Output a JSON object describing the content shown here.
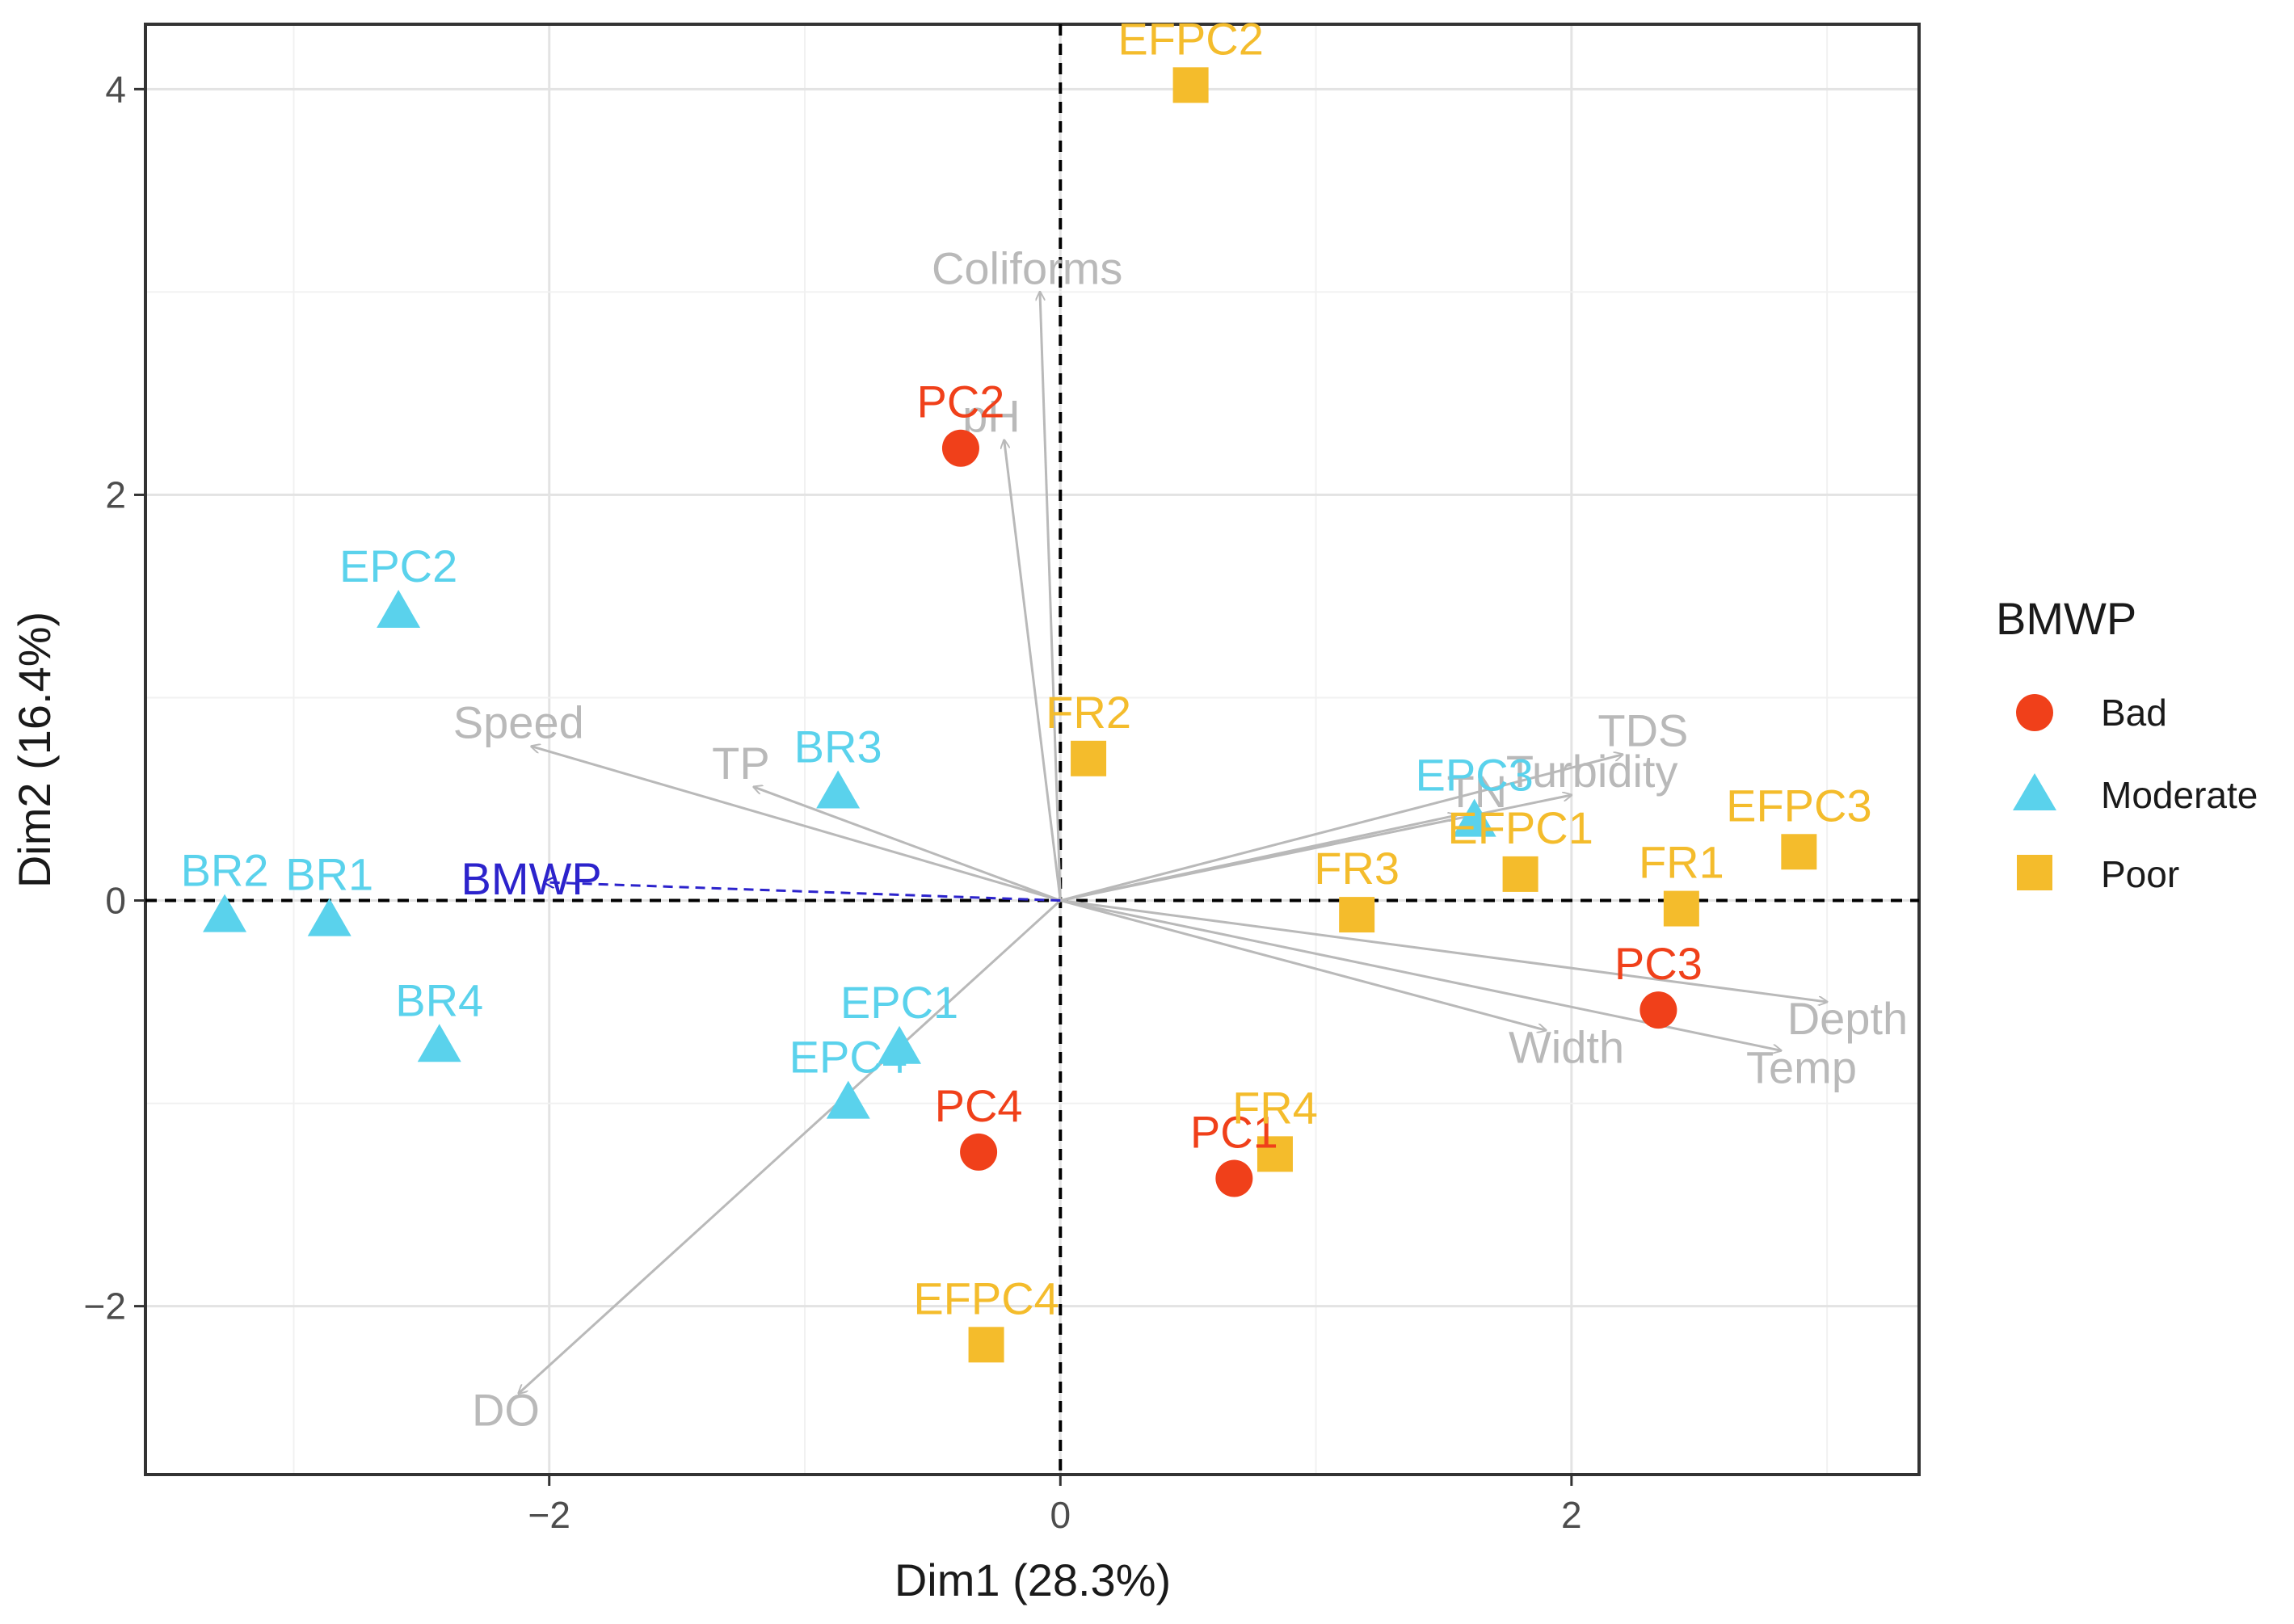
{
  "chart_data": {
    "type": "scatter",
    "subtype": "pca-biplot",
    "xlabel": "Dim1 (28.3%)",
    "ylabel": "Dim2 (16.4%)",
    "xlim": [
      -3.58,
      3.36
    ],
    "ylim": [
      -2.83,
      4.32
    ],
    "x_ticks": [
      -2,
      0,
      2
    ],
    "x_tick_labels": [
      "−2",
      "0",
      "2"
    ],
    "y_ticks": [
      -2,
      0,
      2,
      4
    ],
    "y_tick_labels": [
      "−2",
      "0",
      "2",
      "4"
    ],
    "grid": true,
    "legend": {
      "title": "BMWP",
      "position": "right",
      "entries": [
        {
          "label": "Bad",
          "shape": "circle",
          "color": "#f0401a"
        },
        {
          "label": "Moderate",
          "shape": "triangle",
          "color": "#5ad2ec"
        },
        {
          "label": "Poor",
          "shape": "square",
          "color": "#f4bc2c"
        }
      ]
    },
    "colors": {
      "Bad": "#f0401a",
      "Moderate": "#5ad2ec",
      "Poor": "#f4bc2c",
      "variables": "#b9b9b9",
      "supplementary": "#2c23cc"
    },
    "points": [
      {
        "label": "EFPC2",
        "x": 0.51,
        "y": 4.02,
        "group": "Poor"
      },
      {
        "label": "PC2",
        "x": -0.39,
        "y": 2.23,
        "group": "Bad"
      },
      {
        "label": "EPC2",
        "x": -2.59,
        "y": 1.42,
        "group": "Moderate"
      },
      {
        "label": "FR2",
        "x": 0.11,
        "y": 0.7,
        "group": "Poor"
      },
      {
        "label": "BR3",
        "x": -0.87,
        "y": 0.53,
        "group": "Moderate"
      },
      {
        "label": "EPC3",
        "x": 1.62,
        "y": 0.39,
        "group": "Moderate"
      },
      {
        "label": "EFPC3",
        "x": 2.89,
        "y": 0.24,
        "group": "Poor"
      },
      {
        "label": "EFPC1",
        "x": 1.8,
        "y": 0.13,
        "group": "Poor"
      },
      {
        "label": "FR1",
        "x": 2.43,
        "y": -0.04,
        "group": "Poor"
      },
      {
        "label": "FR3",
        "x": 1.16,
        "y": -0.07,
        "group": "Poor"
      },
      {
        "label": "BR2",
        "x": -3.27,
        "y": -0.08,
        "group": "Moderate"
      },
      {
        "label": "BR1",
        "x": -2.86,
        "y": -0.1,
        "group": "Moderate"
      },
      {
        "label": "PC3",
        "x": 2.34,
        "y": -0.54,
        "group": "Bad"
      },
      {
        "label": "BR4",
        "x": -2.43,
        "y": -0.72,
        "group": "Moderate"
      },
      {
        "label": "EPC1",
        "x": -0.63,
        "y": -0.73,
        "group": "Moderate"
      },
      {
        "label": "EPC4",
        "x": -0.83,
        "y": -1.0,
        "group": "Moderate"
      },
      {
        "label": "PC4",
        "x": -0.32,
        "y": -1.24,
        "group": "Bad"
      },
      {
        "label": "PC1",
        "x": 0.68,
        "y": -1.37,
        "group": "Bad"
      },
      {
        "label": "FR4",
        "x": 0.84,
        "y": -1.25,
        "group": "Poor"
      },
      {
        "label": "EFPC4",
        "x": -0.29,
        "y": -2.19,
        "group": "Poor"
      }
    ],
    "variables": [
      {
        "label": "Coliforms",
        "x": -0.08,
        "y": 3.0
      },
      {
        "label": "pH",
        "x": -0.22,
        "y": 2.27
      },
      {
        "label": "Speed",
        "x": -2.07,
        "y": 0.76
      },
      {
        "label": "TP",
        "x": -1.2,
        "y": 0.56
      },
      {
        "label": "TDS",
        "x": 2.2,
        "y": 0.72
      },
      {
        "label": "Turbidity",
        "x": 2.0,
        "y": 0.52
      },
      {
        "label": "TN",
        "x": 1.55,
        "y": 0.42
      },
      {
        "label": "Width",
        "x": 1.9,
        "y": -0.64
      },
      {
        "label": "Temp",
        "x": 2.82,
        "y": -0.74
      },
      {
        "label": "Depth",
        "x": 3.0,
        "y": -0.5
      },
      {
        "label": "DO",
        "x": -2.12,
        "y": -2.43
      }
    ],
    "supplementary_variable": {
      "label": "BMWP",
      "x": -2.02,
      "y": 0.09
    }
  }
}
